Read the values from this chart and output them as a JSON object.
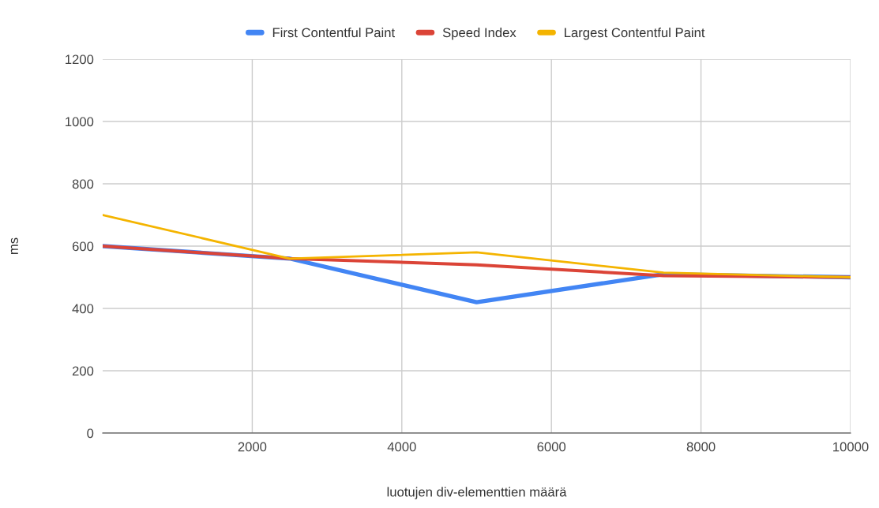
{
  "chart_data": {
    "type": "line",
    "xlabel": "luotujen div-elementtien määrä",
    "ylabel": "ms",
    "x": [
      0,
      2500,
      5000,
      7500,
      10000
    ],
    "series": [
      {
        "name": "First Contentful Paint",
        "color": "#4285f4",
        "values": [
          600,
          560,
          420,
          510,
          500
        ]
      },
      {
        "name": "Speed Index",
        "color": "#db4437",
        "values": [
          600,
          560,
          540,
          505,
          500
        ]
      },
      {
        "name": "Largest Contentful Paint",
        "color": "#f4b400",
        "values": [
          700,
          560,
          580,
          515,
          500
        ]
      }
    ],
    "xlim": [
      0,
      10000
    ],
    "xticks": [
      2000,
      4000,
      6000,
      8000,
      10000
    ],
    "ylim": [
      0,
      1200
    ],
    "yticks": [
      0,
      200,
      400,
      600,
      800,
      1000,
      1200
    ],
    "grid": true,
    "legend": "top",
    "marker": "none",
    "line_style": "solid"
  }
}
